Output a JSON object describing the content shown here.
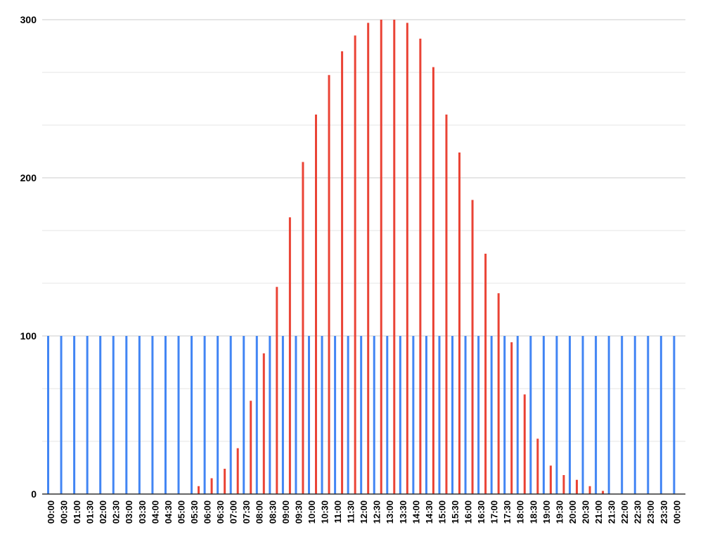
{
  "chart_data": {
    "type": "bar",
    "title": "",
    "xlabel": "",
    "ylabel": "",
    "ylim": [
      0,
      300
    ],
    "yticks": [
      "0",
      "100",
      "200",
      "300"
    ],
    "grid": true,
    "legend": "none",
    "categories": [
      "00:00",
      "00:30",
      "01:00",
      "01:30",
      "02:00",
      "02:30",
      "03:00",
      "03:30",
      "04:00",
      "04:30",
      "05:00",
      "05:30",
      "06:00",
      "06:30",
      "07:00",
      "07:30",
      "08:00",
      "08:30",
      "09:00",
      "09:30",
      "10:00",
      "10:30",
      "11:00",
      "11:30",
      "12:00",
      "12:30",
      "13:00",
      "13:30",
      "14:00",
      "14:30",
      "15:00",
      "15:30",
      "16:00",
      "16:30",
      "17:00",
      "17:30",
      "18:00",
      "18:30",
      "19:00",
      "19:30",
      "20:00",
      "20:30",
      "21:00",
      "21:30",
      "22:00",
      "22:30",
      "23:00",
      "23:30",
      "00:00"
    ],
    "series": [
      {
        "color": "#4285f4",
        "values": [
          100,
          100,
          100,
          100,
          100,
          100,
          100,
          100,
          100,
          100,
          100,
          100,
          100,
          100,
          100,
          100,
          100,
          100,
          100,
          100,
          100,
          100,
          100,
          100,
          100,
          100,
          100,
          100,
          100,
          100,
          100,
          100,
          100,
          100,
          100,
          100,
          100,
          100,
          100,
          100,
          100,
          100,
          100,
          100,
          100,
          100,
          100,
          100,
          100
        ]
      },
      {
        "color": "#ea4335",
        "values": [
          0,
          0,
          0,
          0,
          0,
          0,
          0,
          0,
          0,
          0,
          0,
          5,
          10,
          16,
          29,
          59,
          89,
          131,
          175,
          210,
          240,
          265,
          280,
          290,
          298,
          300,
          300,
          298,
          288,
          270,
          240,
          216,
          186,
          152,
          127,
          96,
          63,
          35,
          18,
          12,
          9,
          5,
          2,
          0,
          0,
          0,
          0,
          0,
          0
        ]
      }
    ]
  }
}
